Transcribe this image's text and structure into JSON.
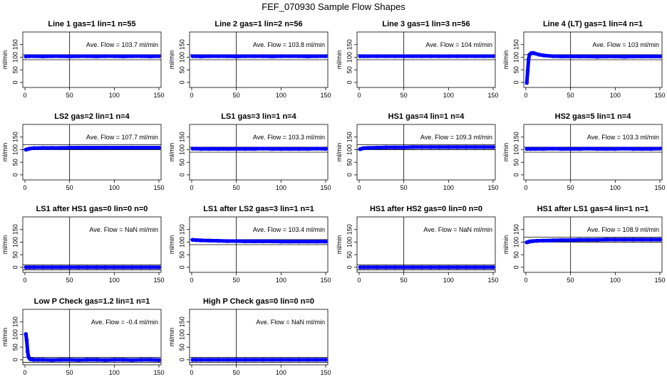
{
  "figure_title": "FEF_070930  Sample Flow Shapes",
  "colors": {
    "points": "#0000ff",
    "axes": "#000000",
    "background": "#ffffff"
  },
  "shared": {
    "ylabel": "ml/min",
    "xlim": [
      0,
      150
    ],
    "ylim": [
      -20,
      200
    ],
    "xticks": [
      0,
      50,
      100,
      150
    ],
    "yticks": [
      0,
      50,
      100,
      150
    ],
    "vline_x": 50,
    "annotation_prefix": "Ave. Flow = ",
    "annotation_suffix": "  ml/min"
  },
  "chart_data": [
    {
      "type": "scatter",
      "title": "Line 1 gas=1 lin=1 n=55",
      "avg_flow": "103.7",
      "hlines": [
        90,
        110
      ],
      "x": [
        1,
        5,
        10,
        20,
        30,
        40,
        50,
        60,
        70,
        80,
        90,
        100,
        110,
        120,
        130,
        140,
        150
      ],
      "y": [
        103,
        104,
        104,
        103,
        104,
        104,
        103,
        104,
        104,
        103,
        104,
        104,
        103,
        104,
        104,
        103,
        104
      ]
    },
    {
      "type": "scatter",
      "title": "Line 2 gas=1 lin=2 n=56",
      "avg_flow": "103.8",
      "hlines": [
        90,
        110
      ],
      "x": [
        1,
        5,
        10,
        20,
        30,
        40,
        50,
        60,
        70,
        80,
        90,
        100,
        110,
        120,
        130,
        140,
        150
      ],
      "y": [
        104,
        104,
        103,
        104,
        104,
        104,
        103,
        104,
        104,
        104,
        103,
        104,
        104,
        104,
        103,
        104,
        104
      ]
    },
    {
      "type": "scatter",
      "title": "Line 3 gas=1 lin=3 n=56",
      "avg_flow": "104",
      "hlines": [
        90,
        110
      ],
      "x": [
        1,
        5,
        10,
        20,
        30,
        40,
        50,
        60,
        70,
        80,
        90,
        100,
        110,
        120,
        130,
        140,
        150
      ],
      "y": [
        104,
        104,
        104,
        104,
        104,
        104,
        104,
        104,
        104,
        104,
        104,
        104,
        104,
        104,
        104,
        104,
        104
      ]
    },
    {
      "type": "scatter",
      "title": "Line 4 (LT) gas=1 lin=4 n=1",
      "avg_flow": "103",
      "hlines": [
        90,
        110
      ],
      "x": [
        1,
        2,
        3,
        4,
        6,
        8,
        10,
        15,
        20,
        30,
        40,
        50,
        60,
        70,
        80,
        90,
        100,
        110,
        120,
        130,
        140,
        150
      ],
      "y": [
        -2,
        45,
        92,
        110,
        116,
        117,
        115,
        110,
        107,
        104,
        103,
        103,
        103,
        103,
        102,
        103,
        103,
        102,
        103,
        103,
        103,
        103
      ]
    },
    {
      "type": "scatter",
      "title": "LS2 gas=2 lin=1 n=4",
      "avg_flow": "107.7",
      "hlines": [
        100,
        120
      ],
      "x": [
        1,
        3,
        5,
        10,
        20,
        30,
        40,
        50,
        60,
        70,
        80,
        90,
        100,
        110,
        120,
        130,
        140,
        150
      ],
      "y": [
        100,
        102,
        104,
        106,
        107,
        107,
        107,
        108,
        108,
        108,
        108,
        108,
        108,
        108,
        108,
        108,
        108,
        108
      ]
    },
    {
      "type": "scatter",
      "title": "LS1 gas=3 lin=1 n=4",
      "avg_flow": "103.3",
      "hlines": [
        90,
        110
      ],
      "x": [
        1,
        5,
        10,
        20,
        30,
        40,
        50,
        60,
        70,
        80,
        90,
        100,
        110,
        120,
        130,
        140,
        150
      ],
      "y": [
        104,
        104,
        103,
        103,
        103,
        103,
        103,
        103,
        103,
        104,
        103,
        103,
        103,
        103,
        103,
        104,
        103
      ]
    },
    {
      "type": "scatter",
      "title": "HS1 gas=4 lin=1 n=4",
      "avg_flow": "109.3",
      "hlines": [
        100,
        120
      ],
      "x": [
        1,
        3,
        5,
        10,
        20,
        30,
        40,
        50,
        60,
        70,
        80,
        90,
        100,
        110,
        120,
        130,
        140,
        150
      ],
      "y": [
        102,
        104,
        106,
        107,
        108,
        109,
        109,
        109,
        110,
        110,
        110,
        110,
        110,
        110,
        110,
        110,
        110,
        110
      ]
    },
    {
      "type": "scatter",
      "title": "HS2 gas=5 lin=1 n=4",
      "avg_flow": "103.3",
      "hlines": [
        90,
        110
      ],
      "x": [
        1,
        5,
        10,
        20,
        30,
        40,
        50,
        60,
        70,
        80,
        90,
        100,
        110,
        120,
        130,
        140,
        150
      ],
      "y": [
        103,
        103,
        103,
        103,
        104,
        103,
        103,
        103,
        104,
        103,
        103,
        103,
        104,
        103,
        103,
        103,
        104
      ]
    },
    {
      "type": "scatter",
      "title": "LS1 after HS1 gas=0 lin=0 n=0",
      "avg_flow": "NaN",
      "hlines": [
        -10,
        10
      ],
      "x": [
        1,
        5,
        10,
        20,
        30,
        40,
        50,
        60,
        70,
        80,
        90,
        100,
        110,
        120,
        130,
        140,
        150
      ],
      "y": [
        0,
        0,
        0,
        0,
        0,
        0,
        0,
        0,
        0,
        0,
        0,
        0,
        0,
        0,
        0,
        0,
        0
      ]
    },
    {
      "type": "scatter",
      "title": "LS1 after LS2 gas=3 lin=1 n=1",
      "avg_flow": "103.4",
      "hlines": [
        90,
        110
      ],
      "x": [
        1,
        5,
        10,
        20,
        30,
        40,
        50,
        60,
        70,
        80,
        90,
        100,
        110,
        120,
        130,
        140,
        150
      ],
      "y": [
        109,
        108,
        107,
        106,
        105,
        104,
        104,
        103,
        103,
        103,
        103,
        102,
        102,
        102,
        102,
        102,
        102
      ]
    },
    {
      "type": "scatter",
      "title": "HS1 after HS2 gas=0 lin=0 n=0",
      "avg_flow": "NaN",
      "hlines": [
        -10,
        10
      ],
      "x": [
        1,
        5,
        10,
        20,
        30,
        40,
        50,
        60,
        70,
        80,
        90,
        100,
        110,
        120,
        130,
        140,
        150
      ],
      "y": [
        0,
        0,
        0,
        0,
        0,
        0,
        0,
        0,
        0,
        0,
        0,
        0,
        0,
        0,
        0,
        0,
        0
      ]
    },
    {
      "type": "scatter",
      "title": "HS1 after LS1 gas=4 lin=1 n=1",
      "avg_flow": "108.9",
      "hlines": [
        100,
        120
      ],
      "x": [
        1,
        3,
        5,
        8,
        12,
        20,
        30,
        40,
        50,
        60,
        70,
        80,
        90,
        100,
        110,
        120,
        130,
        140,
        150
      ],
      "y": [
        99,
        101,
        103,
        104,
        105,
        106,
        107,
        108,
        108,
        109,
        109,
        109,
        110,
        110,
        110,
        110,
        110,
        110,
        110
      ]
    },
    {
      "type": "scatter",
      "title": "Low P Check gas=1.2 lin=1 n=1",
      "avg_flow": "-0.4",
      "hlines": [
        -10,
        10
      ],
      "x": [
        1,
        2,
        3,
        4,
        5,
        6,
        8,
        10,
        15,
        20,
        30,
        40,
        50,
        60,
        70,
        80,
        90,
        100,
        110,
        120,
        130,
        140,
        150
      ],
      "y": [
        102,
        77,
        32,
        12,
        5,
        2,
        1,
        0,
        0,
        0,
        -1,
        0,
        0,
        -1,
        0,
        0,
        -1,
        0,
        0,
        -1,
        0,
        0,
        -1
      ]
    },
    {
      "type": "scatter",
      "title": "High P Check gas=0 lin=0 n=0",
      "avg_flow": "NaN",
      "hlines": [
        -10,
        10
      ],
      "x": [
        1,
        5,
        10,
        20,
        30,
        40,
        50,
        60,
        70,
        80,
        90,
        100,
        110,
        120,
        130,
        140,
        150
      ],
      "y": [
        0,
        0,
        0,
        0,
        0,
        0,
        0,
        0,
        0,
        0,
        0,
        0,
        0,
        0,
        0,
        0,
        0
      ]
    }
  ]
}
